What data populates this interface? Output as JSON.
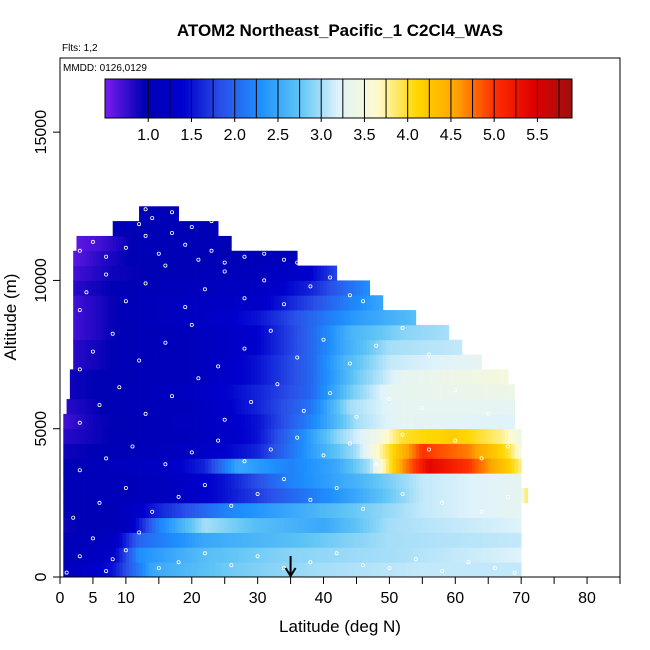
{
  "chart_data": {
    "type": "heatmap",
    "title": "ATOM2 Northeast_Pacific_1 C2Cl4_WAS",
    "flights_note": "Flts: 1,2",
    "date_note": "MMDD: 0126,0129",
    "xlabel": "Latitude (deg N)",
    "ylabel": "Altitude (m)",
    "xlim": [
      0,
      85
    ],
    "ylim": [
      0,
      17500
    ],
    "x_ticks": [
      "0",
      "5",
      "10",
      "20",
      "30",
      "40",
      "50",
      "60",
      "70",
      "80"
    ],
    "y_ticks": [
      "0",
      "5000",
      "10000",
      "15000"
    ],
    "colorbar": {
      "range": [
        0.5,
        5.9
      ],
      "ticks": [
        "1.0",
        "1.5",
        "2.0",
        "2.5",
        "3.0",
        "3.5",
        "4.0",
        "4.5",
        "5.0",
        "5.5"
      ],
      "tick_values": [
        1.0,
        1.5,
        2.0,
        2.5,
        3.0,
        3.5,
        4.0,
        4.5,
        5.0,
        5.5
      ],
      "colors": [
        "#7a1df0",
        "#0000b4",
        "#0000cd",
        "#2a50e8",
        "#1e90ff",
        "#5ec4f5",
        "#dff3fb",
        "#fffacd",
        "#ffd700",
        "#ffa500",
        "#ff3000",
        "#e00000",
        "#a01010"
      ]
    },
    "marker": {
      "x": 35,
      "label": "down-arrow"
    },
    "bin_height_m": 500,
    "bands": [
      {
        "alt": 250,
        "xmin": 0.5,
        "xmax": 70,
        "stops": [
          [
            0.5,
            1.1
          ],
          [
            8,
            1.5
          ],
          [
            14,
            2.5
          ],
          [
            25,
            2.8
          ],
          [
            40,
            3.0
          ],
          [
            55,
            3.1
          ],
          [
            70,
            3.1
          ]
        ]
      },
      {
        "alt": 750,
        "xmin": 0.5,
        "xmax": 70,
        "stops": [
          [
            0.5,
            1.0
          ],
          [
            8,
            1.3
          ],
          [
            12,
            2.3
          ],
          [
            22,
            2.7
          ],
          [
            35,
            2.9
          ],
          [
            50,
            3.0
          ],
          [
            70,
            3.2
          ]
        ]
      },
      {
        "alt": 1250,
        "xmin": 0.5,
        "xmax": 70,
        "stops": [
          [
            0.5,
            1.0
          ],
          [
            8,
            1.2
          ],
          [
            12,
            2.0
          ],
          [
            22,
            2.5
          ],
          [
            35,
            2.7
          ],
          [
            50,
            3.0
          ],
          [
            70,
            3.1
          ]
        ]
      },
      {
        "alt": 1750,
        "xmin": 0.5,
        "xmax": 70,
        "stops": [
          [
            0.5,
            0.9
          ],
          [
            10,
            1.1
          ],
          [
            15,
            2.2
          ],
          [
            22,
            3.0
          ],
          [
            30,
            2.7
          ],
          [
            40,
            2.5
          ],
          [
            50,
            3.0
          ],
          [
            70,
            3.2
          ]
        ]
      },
      {
        "alt": 2250,
        "xmin": 0.5,
        "xmax": 70,
        "stops": [
          [
            0.5,
            1.0
          ],
          [
            8,
            1.0
          ],
          [
            15,
            1.6
          ],
          [
            25,
            2.2
          ],
          [
            35,
            2.5
          ],
          [
            45,
            2.8
          ],
          [
            55,
            3.1
          ],
          [
            70,
            3.3
          ]
        ]
      },
      {
        "alt": 2750,
        "xmin": 0.5,
        "xmax": 71,
        "stops": [
          [
            0.5,
            1.0
          ],
          [
            15,
            1.1
          ],
          [
            25,
            1.5
          ],
          [
            35,
            2.0
          ],
          [
            45,
            2.5
          ],
          [
            55,
            3.1
          ],
          [
            70,
            3.3
          ],
          [
            71,
            4.0
          ]
        ]
      },
      {
        "alt": 3250,
        "xmin": 0.5,
        "xmax": 70,
        "stops": [
          [
            0.5,
            1.0
          ],
          [
            15,
            1.1
          ],
          [
            25,
            1.5
          ],
          [
            35,
            2.2
          ],
          [
            45,
            2.6
          ],
          [
            55,
            3.1
          ],
          [
            70,
            3.3
          ]
        ]
      },
      {
        "alt": 3750,
        "xmin": 0.5,
        "xmax": 70,
        "stops": [
          [
            0.5,
            1.0
          ],
          [
            15,
            1.2
          ],
          [
            22,
            1.6
          ],
          [
            27,
            2.5
          ],
          [
            35,
            2.2
          ],
          [
            42,
            2.5
          ],
          [
            47,
            3.0
          ],
          [
            52,
            4.6
          ],
          [
            56,
            5.4
          ],
          [
            62,
            5.0
          ],
          [
            68,
            4.2
          ],
          [
            70,
            3.8
          ]
        ]
      },
      {
        "alt": 4250,
        "xmin": 0.5,
        "xmax": 70,
        "stops": [
          [
            0.5,
            0.9
          ],
          [
            10,
            1.0
          ],
          [
            20,
            1.2
          ],
          [
            30,
            1.6
          ],
          [
            38,
            2.4
          ],
          [
            45,
            3.0
          ],
          [
            50,
            4.0
          ],
          [
            55,
            5.0
          ],
          [
            62,
            4.7
          ],
          [
            68,
            4.0
          ],
          [
            70,
            3.5
          ]
        ]
      },
      {
        "alt": 4750,
        "xmin": 0.5,
        "xmax": 70,
        "stops": [
          [
            0.5,
            0.8
          ],
          [
            10,
            1.0
          ],
          [
            20,
            1.1
          ],
          [
            30,
            1.5
          ],
          [
            37,
            2.3
          ],
          [
            42,
            2.9
          ],
          [
            48,
            3.4
          ],
          [
            52,
            4.0
          ],
          [
            60,
            4.2
          ],
          [
            67,
            3.8
          ],
          [
            70,
            3.4
          ]
        ]
      },
      {
        "alt": 5250,
        "xmin": 0.5,
        "xmax": 69,
        "stops": [
          [
            0.5,
            0.7
          ],
          [
            5,
            0.9
          ],
          [
            12,
            1.0
          ],
          [
            22,
            1.2
          ],
          [
            30,
            1.5
          ],
          [
            38,
            2.2
          ],
          [
            45,
            3.0
          ],
          [
            52,
            3.3
          ],
          [
            69,
            3.2
          ]
        ]
      },
      {
        "alt": 5750,
        "xmin": 1,
        "xmax": 69,
        "stops": [
          [
            1,
            0.8
          ],
          [
            8,
            1.0
          ],
          [
            20,
            1.1
          ],
          [
            30,
            1.6
          ],
          [
            38,
            2.1
          ],
          [
            44,
            3.0
          ],
          [
            52,
            3.3
          ],
          [
            69,
            3.3
          ]
        ]
      },
      {
        "alt": 6250,
        "xmin": 1.5,
        "xmax": 69,
        "stops": [
          [
            1.5,
            0.9
          ],
          [
            10,
            1.0
          ],
          [
            20,
            1.2
          ],
          [
            30,
            1.6
          ],
          [
            38,
            2.0
          ],
          [
            44,
            2.8
          ],
          [
            50,
            3.3
          ],
          [
            69,
            3.4
          ]
        ]
      },
      {
        "alt": 6750,
        "xmin": 1.5,
        "xmax": 68,
        "stops": [
          [
            1.5,
            0.9
          ],
          [
            10,
            1.0
          ],
          [
            20,
            1.1
          ],
          [
            30,
            1.5
          ],
          [
            38,
            2.0
          ],
          [
            45,
            2.8
          ],
          [
            52,
            3.3
          ],
          [
            68,
            3.5
          ]
        ]
      },
      {
        "alt": 7250,
        "xmin": 2,
        "xmax": 64,
        "stops": [
          [
            2,
            0.8
          ],
          [
            10,
            1.0
          ],
          [
            20,
            1.1
          ],
          [
            30,
            1.5
          ],
          [
            38,
            2.0
          ],
          [
            43,
            2.6
          ],
          [
            50,
            3.1
          ],
          [
            64,
            3.3
          ]
        ]
      },
      {
        "alt": 7750,
        "xmin": 2,
        "xmax": 61,
        "stops": [
          [
            2,
            0.8
          ],
          [
            10,
            1.0
          ],
          [
            20,
            1.1
          ],
          [
            30,
            1.4
          ],
          [
            38,
            2.0
          ],
          [
            43,
            2.5
          ],
          [
            50,
            3.0
          ],
          [
            61,
            3.1
          ]
        ]
      },
      {
        "alt": 8250,
        "xmin": 2,
        "xmax": 59,
        "stops": [
          [
            2,
            0.7
          ],
          [
            10,
            1.0
          ],
          [
            20,
            1.1
          ],
          [
            30,
            1.4
          ],
          [
            38,
            2.0
          ],
          [
            44,
            2.6
          ],
          [
            52,
            2.9
          ],
          [
            59,
            3.0
          ]
        ]
      },
      {
        "alt": 8750,
        "xmin": 2,
        "xmax": 54,
        "stops": [
          [
            2,
            0.7
          ],
          [
            10,
            1.0
          ],
          [
            20,
            1.2
          ],
          [
            30,
            1.5
          ],
          [
            38,
            2.0
          ],
          [
            45,
            2.4
          ],
          [
            54,
            2.7
          ]
        ]
      },
      {
        "alt": 9250,
        "xmin": 2,
        "xmax": 49,
        "stops": [
          [
            2,
            0.7
          ],
          [
            10,
            1.0
          ],
          [
            20,
            1.2
          ],
          [
            30,
            1.3
          ],
          [
            38,
            1.8
          ],
          [
            44,
            2.2
          ],
          [
            49,
            2.5
          ]
        ]
      },
      {
        "alt": 9750,
        "xmin": 2,
        "xmax": 47,
        "stops": [
          [
            2,
            0.8
          ],
          [
            10,
            1.0
          ],
          [
            20,
            1.1
          ],
          [
            30,
            1.2
          ],
          [
            38,
            1.6
          ],
          [
            43,
            2.0
          ],
          [
            47,
            2.3
          ]
        ]
      },
      {
        "alt": 10250,
        "xmin": 2,
        "xmax": 42,
        "stops": [
          [
            2,
            0.7
          ],
          [
            8,
            0.9
          ],
          [
            18,
            1.0
          ],
          [
            30,
            1.1
          ],
          [
            38,
            1.4
          ],
          [
            42,
            1.8
          ]
        ]
      },
      {
        "alt": 10750,
        "xmin": 2,
        "xmax": 36,
        "stops": [
          [
            2,
            0.6
          ],
          [
            6,
            0.8
          ],
          [
            12,
            1.0
          ],
          [
            25,
            1.0
          ],
          [
            36,
            1.1
          ]
        ]
      },
      {
        "alt": 11250,
        "xmin": 2.5,
        "xmax": 26,
        "stops": [
          [
            2.5,
            0.6
          ],
          [
            6,
            0.7
          ],
          [
            12,
            1.0
          ],
          [
            26,
            1.0
          ]
        ]
      },
      {
        "alt": 11750,
        "xmin": 8,
        "xmax": 24,
        "stops": [
          [
            8,
            1.0
          ],
          [
            24,
            1.0
          ]
        ]
      },
      {
        "alt": 12250,
        "xmin": 12,
        "xmax": 18,
        "stops": [
          [
            12,
            1.0
          ],
          [
            18,
            1.0
          ]
        ]
      }
    ],
    "points": [
      [
        1,
        150
      ],
      [
        3,
        700
      ],
      [
        5,
        1300
      ],
      [
        7,
        200
      ],
      [
        8,
        600
      ],
      [
        10,
        900
      ],
      [
        12,
        1500
      ],
      [
        15,
        300
      ],
      [
        18,
        500
      ],
      [
        22,
        800
      ],
      [
        26,
        400
      ],
      [
        30,
        700
      ],
      [
        34,
        300
      ],
      [
        38,
        500
      ],
      [
        42,
        800
      ],
      [
        46,
        400
      ],
      [
        50,
        300
      ],
      [
        54,
        600
      ],
      [
        58,
        200
      ],
      [
        62,
        500
      ],
      [
        66,
        300
      ],
      [
        69,
        150
      ],
      [
        2,
        2000
      ],
      [
        6,
        2500
      ],
      [
        10,
        3000
      ],
      [
        14,
        2200
      ],
      [
        18,
        2700
      ],
      [
        22,
        3100
      ],
      [
        26,
        2400
      ],
      [
        30,
        2800
      ],
      [
        34,
        3300
      ],
      [
        38,
        2600
      ],
      [
        42,
        3000
      ],
      [
        46,
        2300
      ],
      [
        52,
        2800
      ],
      [
        58,
        2500
      ],
      [
        64,
        2200
      ],
      [
        68,
        2700
      ],
      [
        3,
        3600
      ],
      [
        7,
        4000
      ],
      [
        11,
        4400
      ],
      [
        16,
        3800
      ],
      [
        20,
        4200
      ],
      [
        24,
        4600
      ],
      [
        28,
        3900
      ],
      [
        32,
        4300
      ],
      [
        36,
        4700
      ],
      [
        40,
        4100
      ],
      [
        44,
        4500
      ],
      [
        48,
        3800
      ],
      [
        52,
        4800
      ],
      [
        56,
        4300
      ],
      [
        60,
        4600
      ],
      [
        64,
        4000
      ],
      [
        68,
        4400
      ],
      [
        3,
        5200
      ],
      [
        6,
        5800
      ],
      [
        9,
        6400
      ],
      [
        13,
        5500
      ],
      [
        17,
        6100
      ],
      [
        21,
        6700
      ],
      [
        25,
        5300
      ],
      [
        29,
        5900
      ],
      [
        33,
        6500
      ],
      [
        37,
        5600
      ],
      [
        41,
        6200
      ],
      [
        45,
        5400
      ],
      [
        50,
        6000
      ],
      [
        55,
        5700
      ],
      [
        60,
        6300
      ],
      [
        65,
        5500
      ],
      [
        3,
        7000
      ],
      [
        5,
        7600
      ],
      [
        8,
        8200
      ],
      [
        12,
        7300
      ],
      [
        16,
        7900
      ],
      [
        20,
        8500
      ],
      [
        24,
        7100
      ],
      [
        28,
        7700
      ],
      [
        32,
        8300
      ],
      [
        36,
        7400
      ],
      [
        40,
        8000
      ],
      [
        44,
        7200
      ],
      [
        48,
        7800
      ],
      [
        52,
        8400
      ],
      [
        56,
        7500
      ],
      [
        3,
        9000
      ],
      [
        4,
        9600
      ],
      [
        7,
        10200
      ],
      [
        10,
        9300
      ],
      [
        13,
        9900
      ],
      [
        16,
        10500
      ],
      [
        19,
        9100
      ],
      [
        22,
        9700
      ],
      [
        25,
        10300
      ],
      [
        28,
        9400
      ],
      [
        31,
        10000
      ],
      [
        34,
        9200
      ],
      [
        38,
        9800
      ],
      [
        41,
        10100
      ],
      [
        44,
        9500
      ],
      [
        46,
        9300
      ],
      [
        3,
        11000
      ],
      [
        5,
        11300
      ],
      [
        7,
        10800
      ],
      [
        10,
        11100
      ],
      [
        13,
        11500
      ],
      [
        15,
        10900
      ],
      [
        17,
        11600
      ],
      [
        19,
        11200
      ],
      [
        21,
        10700
      ],
      [
        23,
        11000
      ],
      [
        25,
        10600
      ],
      [
        28,
        10800
      ],
      [
        31,
        10900
      ],
      [
        34,
        10700
      ],
      [
        36,
        10600
      ],
      [
        12,
        11900
      ],
      [
        14,
        12100
      ],
      [
        17,
        12300
      ],
      [
        20,
        11800
      ],
      [
        23,
        12000
      ],
      [
        13,
        12400
      ]
    ]
  }
}
